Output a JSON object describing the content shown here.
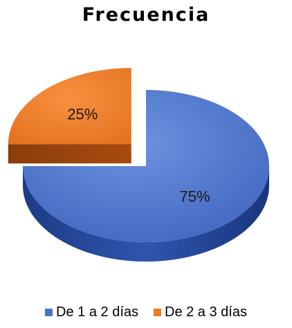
{
  "chart_data": {
    "type": "pie",
    "title": "Frecuencia",
    "categories": [
      "De 1 a 2 días",
      "De 2 a 3 días"
    ],
    "values": [
      75,
      25
    ],
    "labels": [
      "75%",
      "25%"
    ],
    "colors": [
      "#4a72c9",
      "#ee7a24"
    ],
    "exploded": [
      false,
      true
    ],
    "legend_position": "bottom",
    "style": "3d"
  }
}
